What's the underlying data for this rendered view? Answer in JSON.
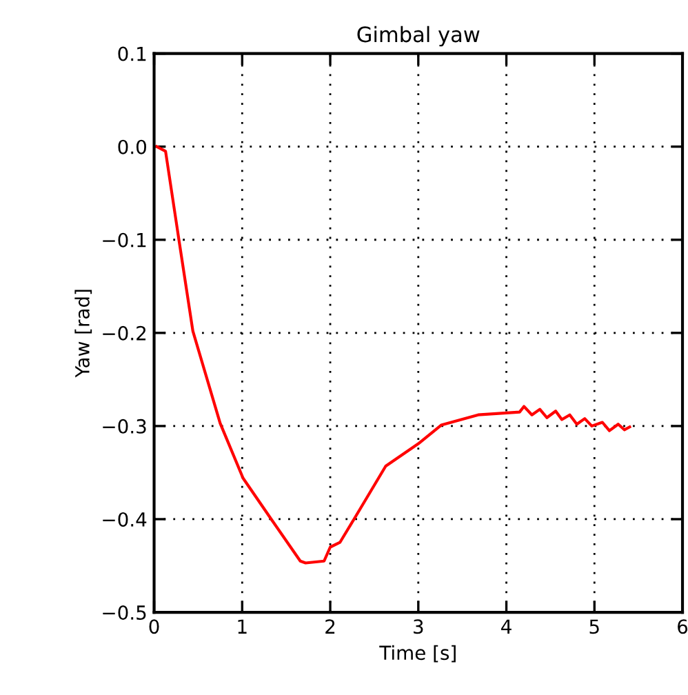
{
  "chart_data": {
    "type": "line",
    "title": "Gimbal yaw",
    "xlabel": "Time [s]",
    "ylabel": "Yaw [rad]",
    "series": [
      {
        "color": "#ff0000",
        "x": [
          0.03,
          0.13,
          0.28,
          0.44,
          0.75,
          1.01,
          1.33,
          1.66,
          1.72,
          1.93,
          2.0,
          2.11,
          2.27,
          2.63,
          3.0,
          3.26,
          3.68,
          4.15,
          4.2,
          4.29,
          4.38,
          4.46,
          4.56,
          4.63,
          4.72,
          4.8,
          4.89,
          4.97,
          5.09,
          5.17,
          5.27,
          5.34,
          5.4
        ],
        "values": [
          0.0,
          -0.005,
          -0.099,
          -0.198,
          -0.297,
          -0.356,
          -0.4,
          -0.445,
          -0.447,
          -0.445,
          -0.43,
          -0.425,
          -0.4,
          -0.343,
          -0.319,
          -0.299,
          -0.288,
          -0.285,
          -0.279,
          -0.288,
          -0.282,
          -0.291,
          -0.284,
          -0.293,
          -0.288,
          -0.298,
          -0.292,
          -0.3,
          -0.296,
          -0.305,
          -0.298,
          -0.304,
          -0.301
        ]
      }
    ],
    "xlim": [
      0,
      6
    ],
    "ylim": [
      -0.5,
      0.1
    ],
    "xticks": [
      0,
      1,
      2,
      3,
      4,
      5,
      6
    ],
    "yticks": [
      {
        "value": 0.1,
        "label": "0.1"
      },
      {
        "value": 0.0,
        "label": "0.0"
      },
      {
        "value": -0.1,
        "label": "−0.1"
      },
      {
        "value": -0.2,
        "label": "−0.2"
      },
      {
        "value": -0.3,
        "label": "−0.3"
      },
      {
        "value": -0.4,
        "label": "−0.4"
      },
      {
        "value": -0.5,
        "label": "−0.5"
      }
    ],
    "grid": true,
    "line_style": "solid",
    "marker": "none"
  }
}
